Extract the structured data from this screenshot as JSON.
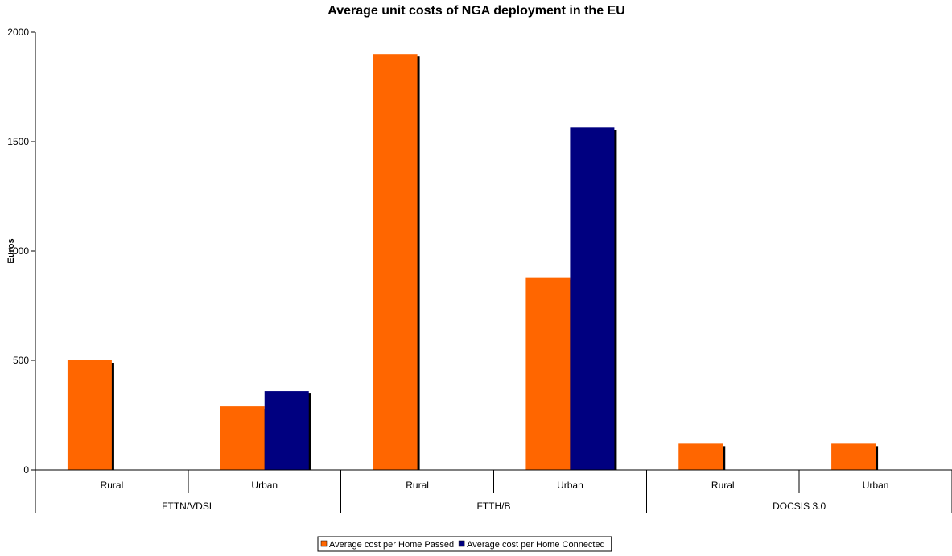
{
  "chart_data": {
    "type": "bar",
    "title": "Average unit costs of NGA deployment in the EU",
    "ylabel": "Euros",
    "xlabel": "",
    "ylim": [
      0,
      2000
    ],
    "yticks": [
      0,
      500,
      1000,
      1500,
      2000
    ],
    "grid": false,
    "legend_position": "bottom",
    "groups": [
      "FTTN/VDSL",
      "FTTH/B",
      "DOCSIS 3.0"
    ],
    "categories": [
      "Rural",
      "Urban",
      "Rural",
      "Urban",
      "Rural",
      "Urban"
    ],
    "series": [
      {
        "name": "Average cost per Home Passed",
        "color": "#ff6600",
        "values": [
          500,
          290,
          1900,
          880,
          120,
          120
        ]
      },
      {
        "name": "Average cost per Home Connected",
        "color": "#000080",
        "values": [
          null,
          360,
          null,
          1565,
          null,
          null
        ]
      }
    ]
  }
}
